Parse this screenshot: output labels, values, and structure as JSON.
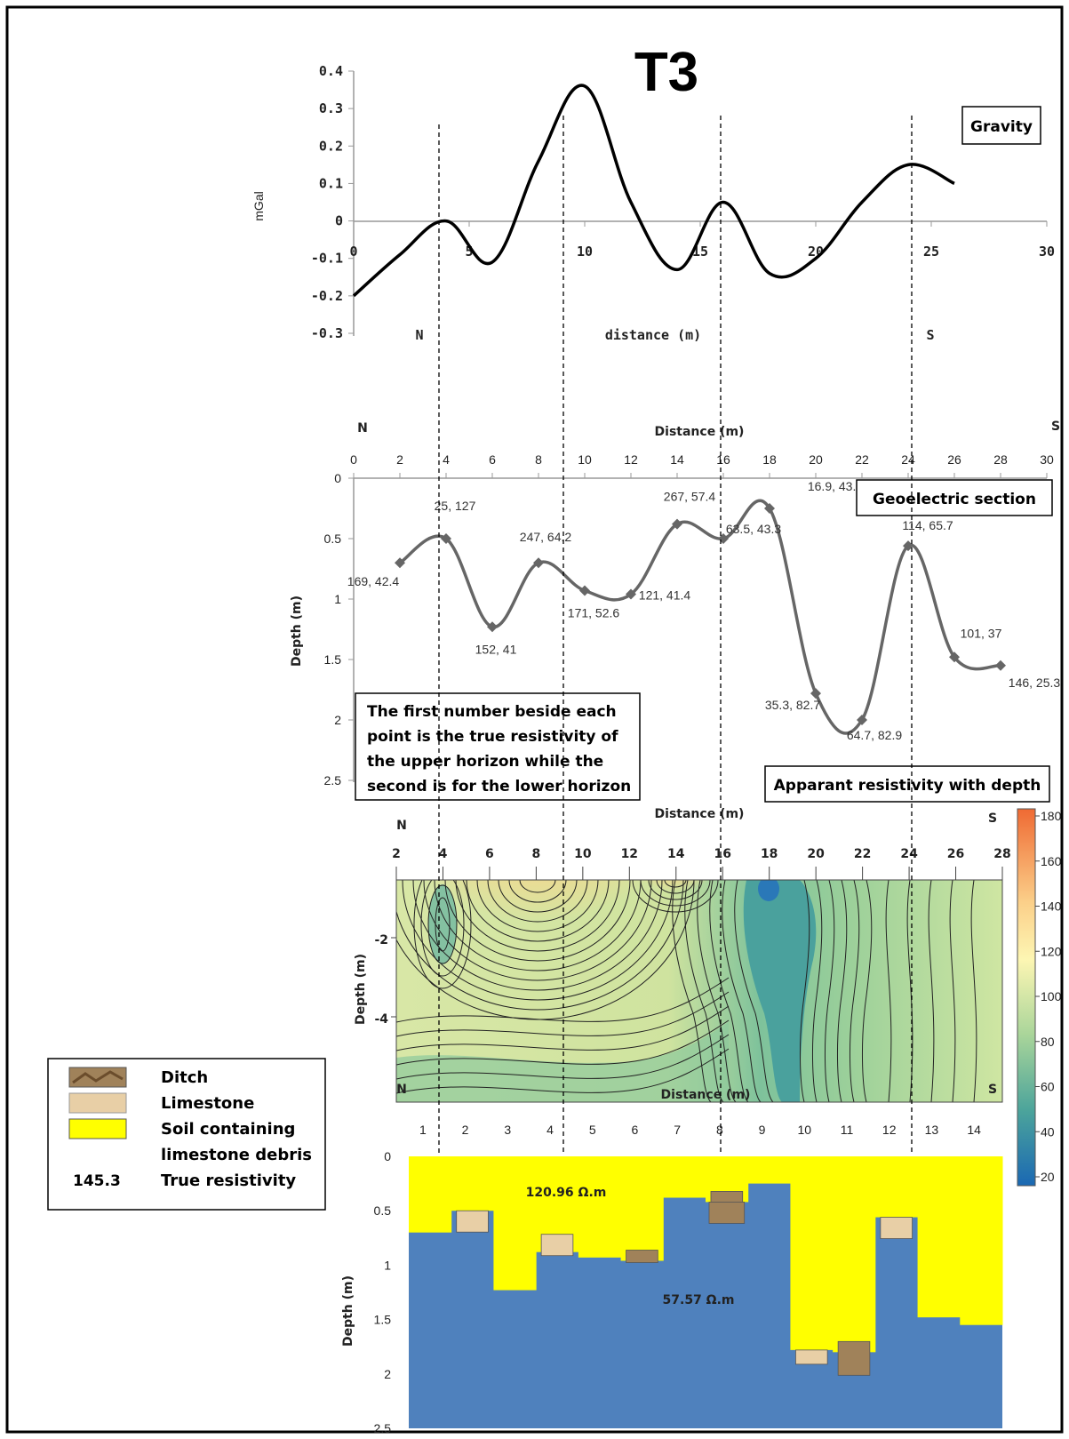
{
  "title": "T3",
  "gravity": {
    "box_label": "Gravity",
    "ylabel": "mGal",
    "xlabel": "distance (m)",
    "north": "N",
    "south": "S",
    "yticks": [
      "0.4",
      "0.3",
      "0.2",
      "0.1",
      "0",
      "-0.1",
      "-0.2",
      "-0.3"
    ],
    "xticks": [
      "0",
      "5",
      "10",
      "15",
      "20",
      "25",
      "30"
    ]
  },
  "geoelectric": {
    "box_label": "Geoelectric section",
    "xlabel": "Distance (m)",
    "ylabel": "Depth (m)",
    "north": "N",
    "south": "S",
    "xticks": [
      "0",
      "2",
      "4",
      "6",
      "8",
      "10",
      "12",
      "14",
      "16",
      "18",
      "20",
      "22",
      "24",
      "26",
      "28",
      "30"
    ],
    "yticks": [
      "0",
      "0.5",
      "1",
      "1.5",
      "2",
      "2.5"
    ],
    "note": "The first number beside each point is the true resistivity of the upper horizon while the second is for the lower horizon"
  },
  "contour": {
    "box_label": "Apparant resistivity with depth",
    "xlabel": "Distance (m)",
    "ylabel": "Depth (m)",
    "north": "N",
    "south": "S",
    "xticks": [
      "2",
      "4",
      "6",
      "8",
      "10",
      "12",
      "14",
      "16",
      "18",
      "20",
      "22",
      "24",
      "26",
      "28"
    ],
    "yticks": [
      "-2",
      "-4"
    ],
    "colorbar_ticks": [
      "180",
      "160",
      "140",
      "120",
      "100",
      "80",
      "60",
      "40",
      "20"
    ]
  },
  "model": {
    "xlabel": "Distance (m)",
    "ylabel": "Depth (m)",
    "north": "N",
    "south": "S",
    "xticks": [
      "1",
      "2",
      "3",
      "4",
      "5",
      "6",
      "7",
      "8",
      "9",
      "10",
      "11",
      "12",
      "13",
      "14"
    ],
    "yticks": [
      "0",
      "0.5",
      "1",
      "1.5",
      "2",
      "2.5"
    ],
    "upper_label": "120.96 Ω.m",
    "lower_label": "57.57 Ω.m",
    "colors": {
      "soil": "#ffff00",
      "limestone_bedrock": "#4f81bd",
      "limestone": "#e8cfa6",
      "ditch": "#a0825a"
    }
  },
  "legend": {
    "items": [
      {
        "label": "Ditch",
        "swatch": "ditch"
      },
      {
        "label": "Limestone",
        "swatch": "limestone"
      },
      {
        "label": "Soil containing",
        "swatch": "soil"
      },
      {
        "label": "limestone debris",
        "swatch": ""
      },
      {
        "label": "True resistivity",
        "swatch": "145.3"
      }
    ]
  },
  "chart_data": [
    {
      "type": "line",
      "title": "T3",
      "xlabel": "distance (m)",
      "ylabel": "mGal",
      "xlim": [
        0,
        30
      ],
      "ylim": [
        -0.3,
        0.4
      ],
      "series": [
        {
          "x": [
            0,
            2,
            4,
            6,
            8,
            10,
            12,
            14,
            16,
            18,
            20,
            22,
            24,
            26
          ],
          "y": [
            -0.2,
            -0.09,
            0.0,
            -0.11,
            0.16,
            0.36,
            0.05,
            -0.13,
            0.05,
            -0.14,
            -0.1,
            0.05,
            0.15,
            0.1
          ]
        }
      ]
    },
    {
      "type": "line",
      "title": "Geoelectric section",
      "xlabel": "Distance (m)",
      "ylabel": "Depth (m)",
      "xlim": [
        0,
        30
      ],
      "ylim": [
        0,
        2.5
      ],
      "series": [
        {
          "x": [
            2,
            4,
            6,
            8,
            10,
            12,
            14,
            16,
            18,
            20,
            22,
            24,
            26,
            28
          ],
          "y": [
            0.7,
            0.5,
            1.23,
            0.7,
            0.93,
            0.96,
            0.38,
            0.5,
            0.25,
            1.78,
            2.0,
            0.56,
            1.48,
            1.55
          ],
          "labels": [
            "169, 42.4",
            "25, 127",
            "152, 41",
            "247, 64.2",
            "171, 52.6",
            "121, 41.4",
            "267, 57.4",
            "63.5, 43.3",
            "16.9, 43.1",
            "35.3, 82.7",
            "64.7, 82.9",
            "114, 65.7",
            "101, 37",
            "146, 25.3"
          ]
        }
      ]
    },
    {
      "type": "heatmap",
      "title": "Apparant resistivity with depth",
      "xlabel": "Distance (m)",
      "ylabel": "Depth (m)",
      "xlim": [
        2,
        28
      ],
      "colorbar_range": [
        20,
        180
      ]
    },
    {
      "type": "area",
      "xlabel": "Distance (m)",
      "ylabel": "Depth (m)",
      "x": [
        1,
        2,
        3,
        4,
        5,
        6,
        7,
        8,
        9,
        10,
        11,
        12,
        13,
        14
      ],
      "upper_horizon_depth": [
        0.7,
        0.5,
        1.23,
        0.88,
        0.93,
        0.96,
        0.38,
        0.42,
        0.25,
        1.78,
        1.8,
        0.56,
        1.48,
        1.55
      ],
      "ylim": [
        0,
        2.5
      ]
    }
  ]
}
